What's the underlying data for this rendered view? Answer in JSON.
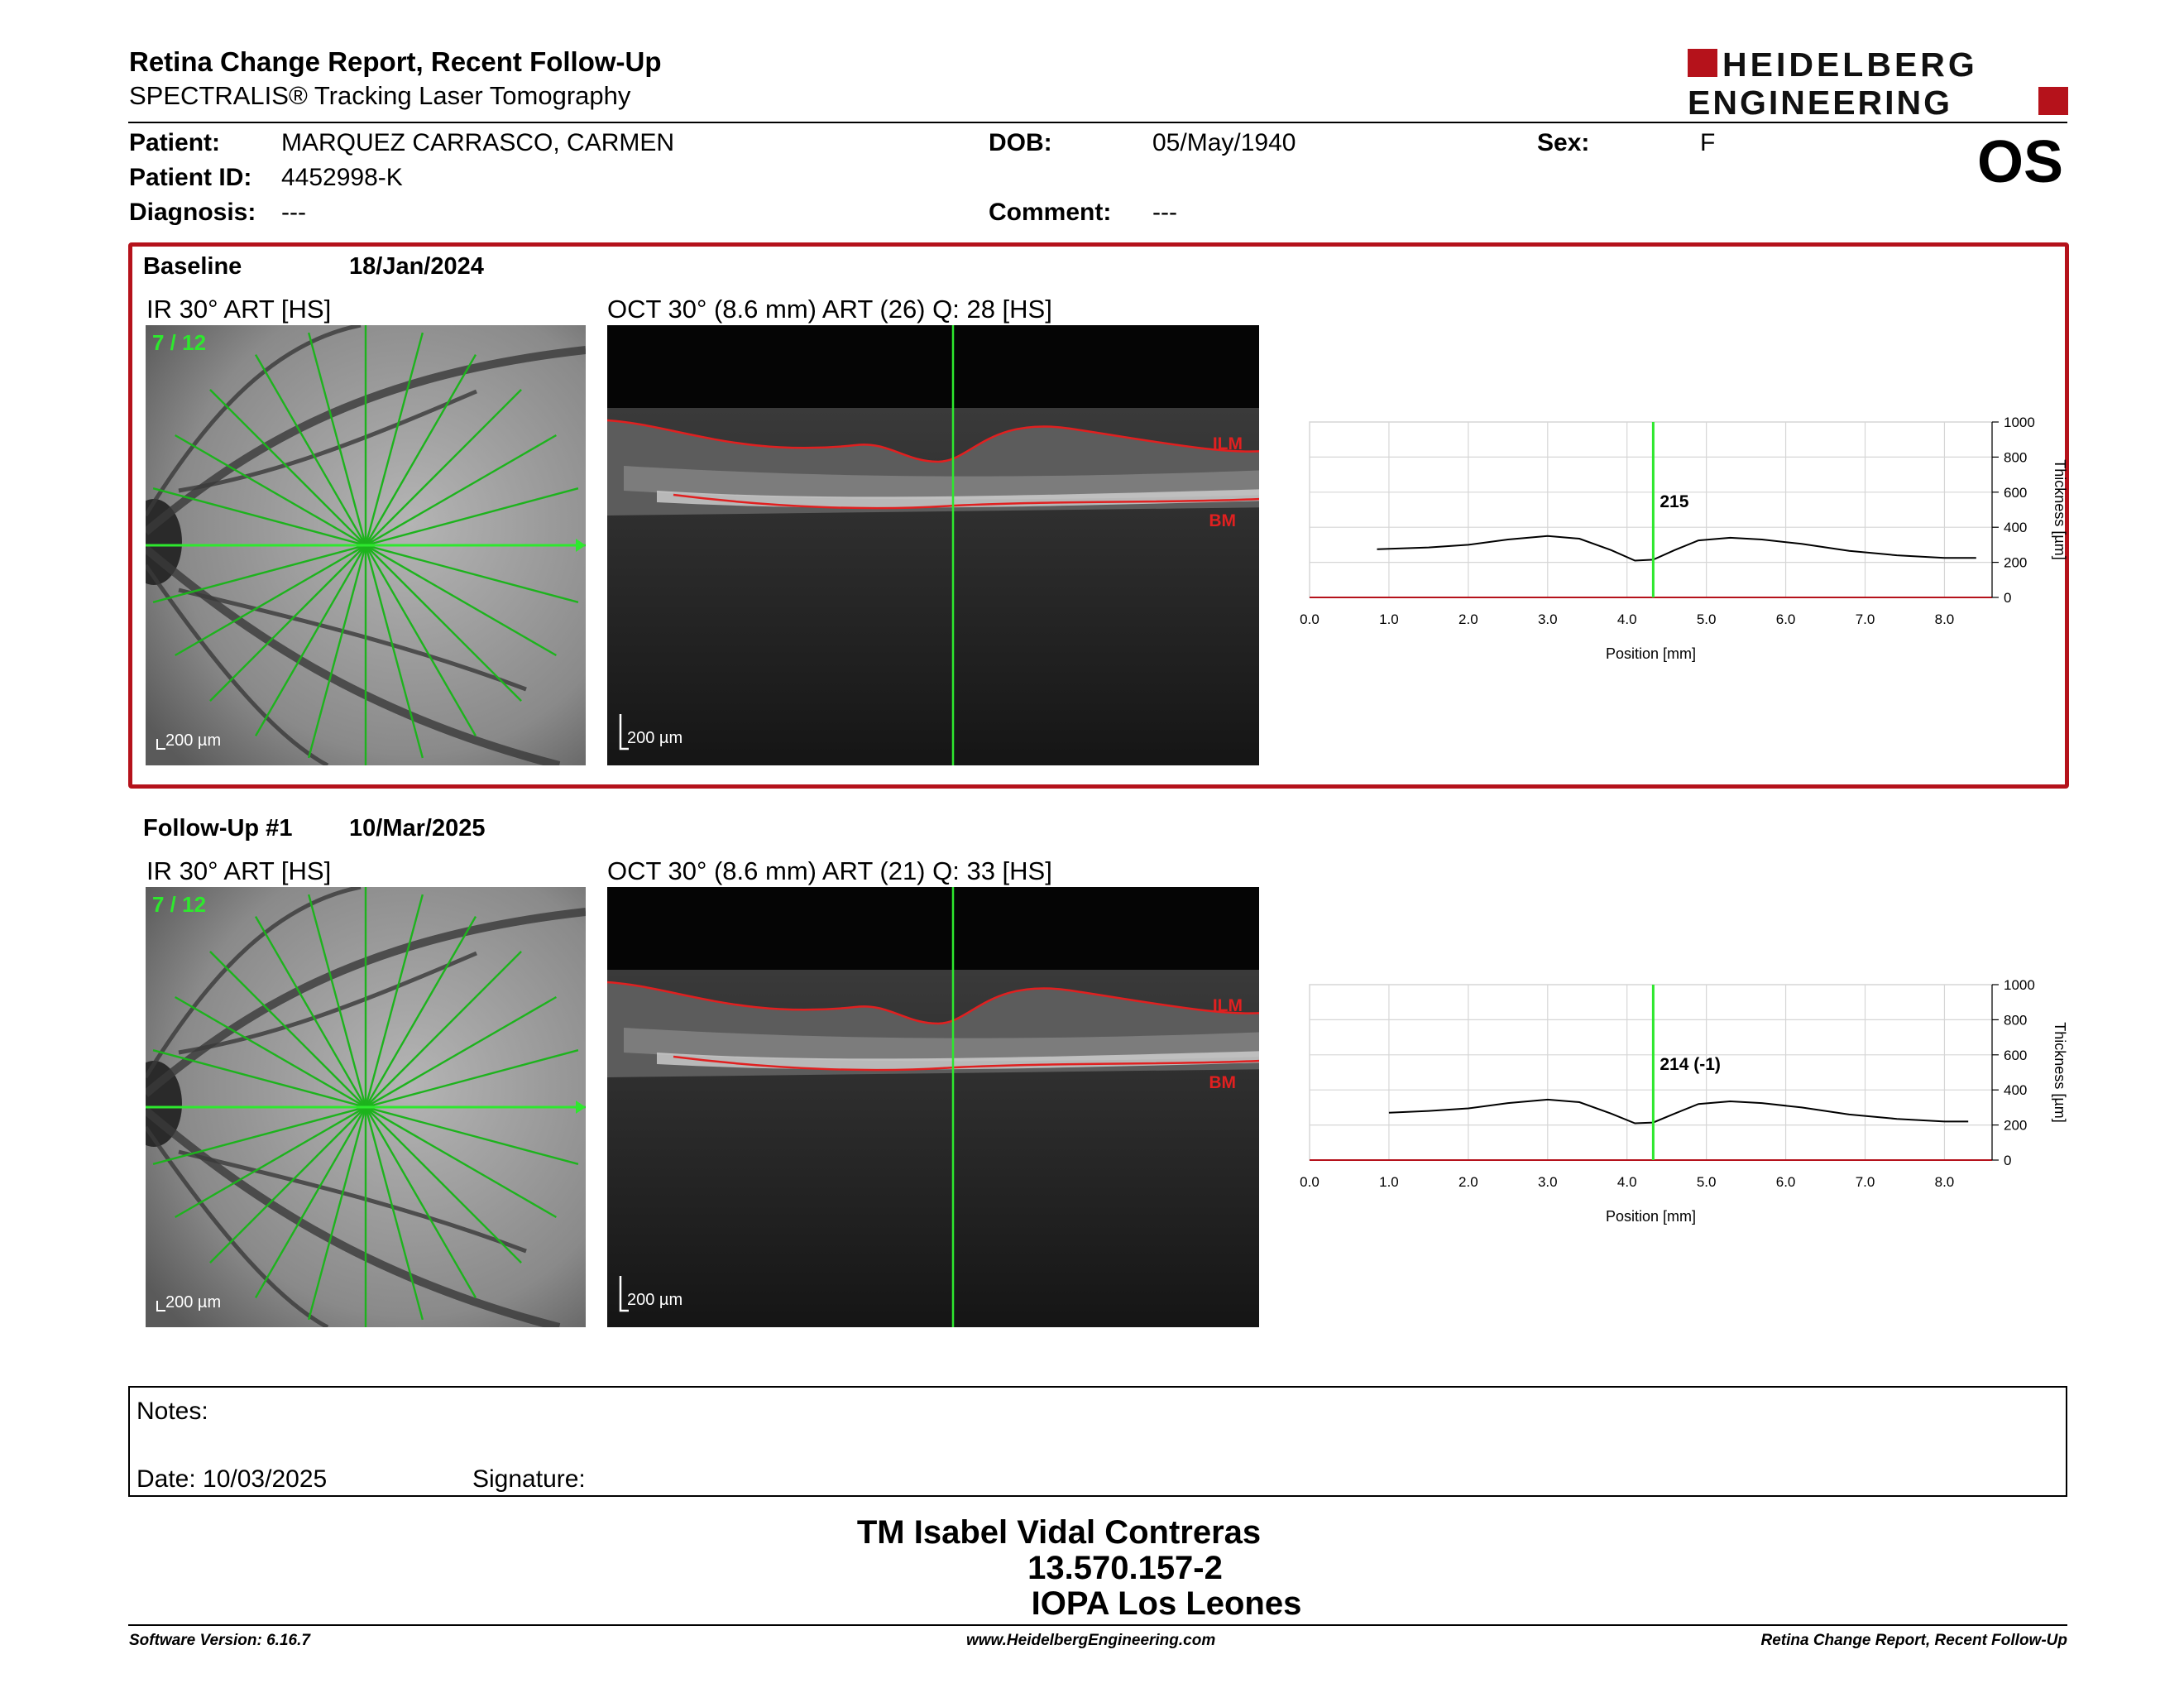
{
  "header": {
    "title": "Retina Change Report, Recent Follow-Up",
    "subtitle": "SPECTRALIS® Tracking Laser Tomography",
    "logo_line1": "HEIDELBERG",
    "logo_line2": "ENGINEERING",
    "eye": "OS"
  },
  "patient": {
    "patient_label": "Patient:",
    "patient_value": "MARQUEZ CARRASCO, CARMEN",
    "id_label": "Patient ID:",
    "id_value": "4452998-K",
    "diagnosis_label": "Diagnosis:",
    "diagnosis_value": "---",
    "dob_label": "DOB:",
    "dob_value": "05/May/1940",
    "comment_label": "Comment:",
    "comment_value": "---",
    "sex_label": "Sex:",
    "sex_value": "F"
  },
  "exams": [
    {
      "name": "Baseline",
      "date": "18/Jan/2024",
      "ir_label": "IR 30° ART [HS]",
      "oct_label": "OCT 30° (8.6 mm) ART (26) Q: 28 [HS]",
      "scan_index": "7 / 12",
      "scale_ir": "200 µm",
      "scale_oct": "200 µm",
      "ilm": "ILM",
      "bm": "BM",
      "cursor_value": "215"
    },
    {
      "name": "Follow-Up #1",
      "date": "10/Mar/2025",
      "ir_label": "IR 30° ART [HS]",
      "oct_label": "OCT 30° (8.6 mm) ART (21) Q: 33 [HS]",
      "scan_index": "7 / 12",
      "scale_ir": "200 µm",
      "scale_oct": "200 µm",
      "ilm": "ILM",
      "bm": "BM",
      "cursor_value": "214 (-1)"
    }
  ],
  "chart_data": [
    {
      "type": "line",
      "xlabel": "Position [mm]",
      "ylabel": "Thickness [µm]",
      "xlim": [
        0,
        8.6
      ],
      "ylim": [
        0,
        1000
      ],
      "xticks": [
        "0.0",
        "1.0",
        "2.0",
        "3.0",
        "4.0",
        "5.0",
        "6.0",
        "7.0",
        "8.0"
      ],
      "yticks": [
        "0",
        "200",
        "400",
        "600",
        "800",
        "1000"
      ],
      "cursor_x": 4.33,
      "series": [
        {
          "x": [
            0.85,
            1.5,
            2.0,
            2.5,
            3.0,
            3.4,
            3.8,
            4.1,
            4.33,
            4.6,
            4.9,
            5.3,
            5.7,
            6.2,
            6.8,
            7.4,
            8.0,
            8.4
          ],
          "y": [
            275,
            285,
            300,
            330,
            350,
            335,
            270,
            210,
            215,
            270,
            325,
            340,
            330,
            305,
            265,
            240,
            225,
            225
          ]
        }
      ]
    },
    {
      "type": "line",
      "xlabel": "Position [mm]",
      "ylabel": "Thickness [µm]",
      "xlim": [
        0,
        8.6
      ],
      "ylim": [
        0,
        1000
      ],
      "xticks": [
        "0.0",
        "1.0",
        "2.0",
        "3.0",
        "4.0",
        "5.0",
        "6.0",
        "7.0",
        "8.0"
      ],
      "yticks": [
        "0",
        "200",
        "400",
        "600",
        "800",
        "1000"
      ],
      "cursor_x": 4.33,
      "series": [
        {
          "x": [
            1.0,
            1.5,
            2.0,
            2.5,
            3.0,
            3.4,
            3.8,
            4.1,
            4.33,
            4.6,
            4.9,
            5.3,
            5.7,
            6.2,
            6.8,
            7.4,
            8.0,
            8.3
          ],
          "y": [
            270,
            280,
            295,
            325,
            345,
            330,
            265,
            210,
            214,
            265,
            320,
            335,
            325,
            300,
            260,
            235,
            220,
            220
          ]
        }
      ]
    }
  ],
  "notes": {
    "notes_label": "Notes:",
    "date_label": "Date: 10/03/2025",
    "signature_label": "Signature:"
  },
  "signature": {
    "name": "TM Isabel Vidal Contreras",
    "rut": "13.570.157-2",
    "clinic": "IOPA Los Leones"
  },
  "footer": {
    "software": "Software Version: 6.16.7",
    "website": "www.HeidelbergEngineering.com",
    "report": "Retina Change Report, Recent Follow-Up"
  },
  "colors": {
    "brand_red": "#b5121b",
    "scan_green": "#1db31d",
    "cursor_green": "#2ee82e",
    "layer_red": "#e02020"
  }
}
